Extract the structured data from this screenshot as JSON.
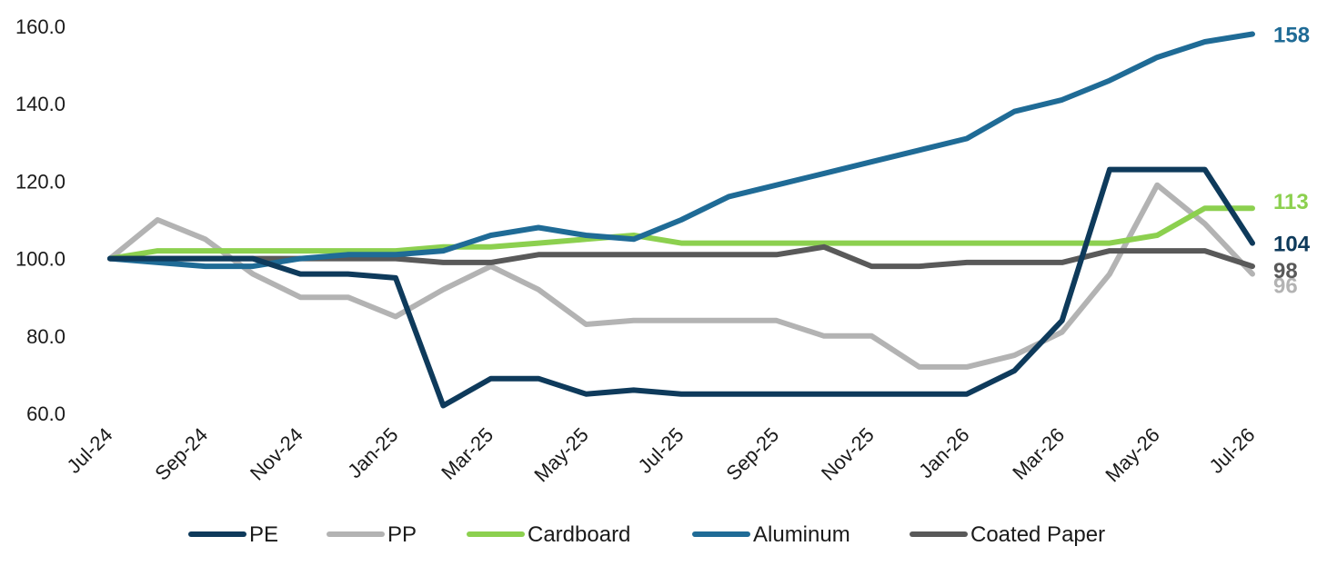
{
  "chart_data": {
    "type": "line",
    "title": "",
    "xlabel": "",
    "ylabel": "",
    "ylim": [
      60,
      160
    ],
    "yticks": [
      "60.0",
      "80.0",
      "100.0",
      "120.0",
      "140.0",
      "160.0"
    ],
    "grid": false,
    "legend_position": "bottom",
    "x": [
      "Jul-24",
      "Aug-24",
      "Sep-24",
      "Oct-24",
      "Nov-24",
      "Dec-24",
      "Jan-25",
      "Feb-25",
      "Mar-25",
      "Apr-25",
      "May-25",
      "Jun-25",
      "Jul-25",
      "Aug-25",
      "Sep-25",
      "Oct-25",
      "Nov-25",
      "Dec-25",
      "Jan-26",
      "Feb-26",
      "Mar-26",
      "Apr-26",
      "May-26",
      "Jun-26",
      "Jul-26"
    ],
    "xtick_labels": [
      "Jul-24",
      "Sep-24",
      "Nov-24",
      "Jan-25",
      "Mar-25",
      "May-25",
      "Jul-25",
      "Sep-25",
      "Nov-25",
      "Jan-26",
      "Mar-26",
      "May-26",
      "Jul-26"
    ],
    "series": [
      {
        "name": "PE",
        "color": "#0e3a5b",
        "end_label": "104",
        "values": [
          100,
          100,
          100,
          100,
          96,
          96,
          95,
          62,
          69,
          69,
          65,
          66,
          65,
          65,
          65,
          65,
          65,
          65,
          65,
          71,
          84,
          123,
          123,
          123,
          104
        ]
      },
      {
        "name": "PP",
        "color": "#b3b3b3",
        "end_label": "96",
        "values": [
          100,
          110,
          105,
          96,
          90,
          90,
          85,
          92,
          98,
          92,
          83,
          84,
          84,
          84,
          84,
          80,
          80,
          72,
          72,
          75,
          81,
          96,
          119,
          109,
          96
        ]
      },
      {
        "name": "Cardboard",
        "color": "#8cd04f",
        "end_label": "113",
        "values": [
          100,
          102,
          102,
          102,
          102,
          102,
          102,
          103,
          103,
          104,
          105,
          106,
          104,
          104,
          104,
          104,
          104,
          104,
          104,
          104,
          104,
          104,
          106,
          113,
          113
        ]
      },
      {
        "name": "Aluminum",
        "color": "#1f6b96",
        "end_label": "158",
        "values": [
          100,
          99,
          98,
          98,
          100,
          101,
          101,
          102,
          106,
          108,
          106,
          105,
          110,
          116,
          119,
          122,
          125,
          128,
          131,
          138,
          141,
          146,
          152,
          156,
          158
        ]
      },
      {
        "name": "Coated Paper",
        "color": "#595959",
        "end_label": "98",
        "values": [
          100,
          100,
          100,
          100,
          100,
          100,
          100,
          99,
          99,
          101,
          101,
          101,
          101,
          101,
          101,
          103,
          98,
          98,
          99,
          99,
          99,
          102,
          102,
          102,
          98
        ]
      }
    ]
  }
}
